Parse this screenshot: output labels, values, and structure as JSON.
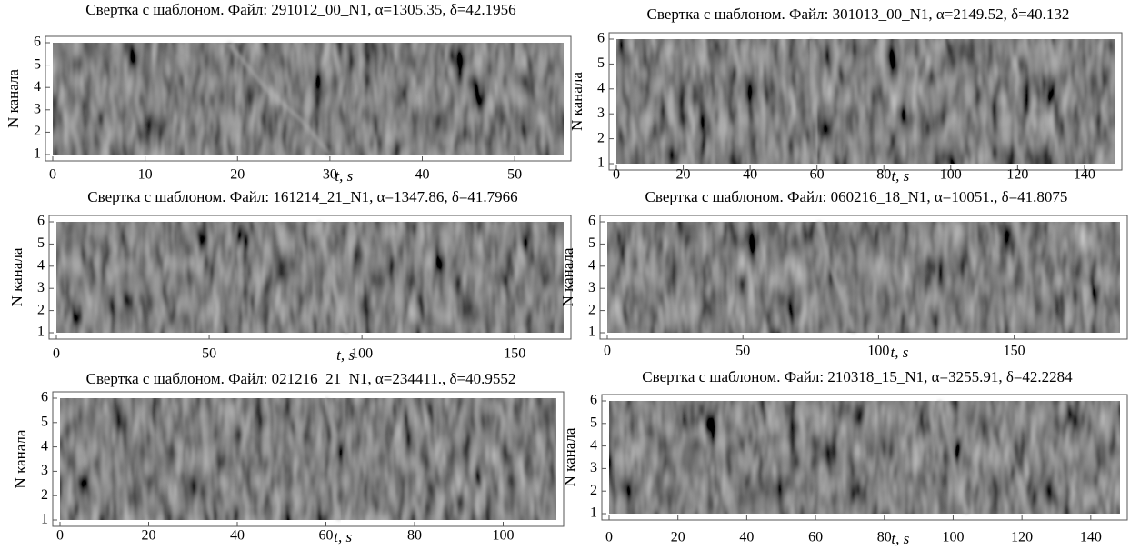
{
  "chart_data": [
    {
      "type": "heatmap",
      "title": "Свертка с шаблоном. Файл: 291012_00_N1, α=1305.35, δ=42.1956",
      "xlabel": "t, s",
      "ylabel": "N канала",
      "xlim": [
        0,
        55.3
      ],
      "xticks": [
        0,
        10,
        20,
        30,
        40,
        50
      ],
      "ylim": [
        1,
        6
      ],
      "yticks": [
        1,
        2,
        3,
        4,
        5,
        6
      ],
      "x": [
        19,
        23,
        27,
        30
      ],
      "values": [
        6,
        4,
        2.5,
        1
      ],
      "color": "#b0b0b0"
    },
    {
      "type": "heatmap",
      "title": "Свертка с шаблоном. Файл: 301013_00_N1, α=2149.52, δ=40.132",
      "xlabel": "t, s",
      "ylabel": "N канала",
      "xlim": [
        0,
        149
      ],
      "xticks": [
        0,
        20,
        40,
        60,
        80,
        100,
        120,
        140
      ],
      "ylim": [
        1,
        6
      ],
      "yticks": [
        1,
        2,
        3,
        4,
        5,
        6
      ],
      "x": [
        58,
        59,
        60,
        60
      ],
      "values": [
        6,
        4,
        2,
        1
      ],
      "color": "#b0b0b0"
    },
    {
      "type": "heatmap",
      "title": "Свертка с шаблоном. Файл: 161214_21_N1, α=1347.86, δ=41.7966",
      "xlabel": "t, s",
      "ylabel": "N канала",
      "xlim": [
        0,
        166
      ],
      "xticks": [
        0,
        50,
        100,
        150
      ],
      "ylim": [
        1,
        6
      ],
      "yticks": [
        1,
        2,
        3,
        4,
        5,
        6
      ],
      "x": [
        86,
        89,
        92,
        95
      ],
      "values": [
        6,
        4,
        2.5,
        1
      ],
      "color": "#b0b0b0"
    },
    {
      "type": "heatmap",
      "title": "Свертка с шаблоном. Файл: 060216_18_N1, α=10051., δ=41.8075",
      "xlabel": "t, s",
      "ylabel": "N канала",
      "xlim": [
        0,
        189
      ],
      "xticks": [
        0,
        50,
        100,
        150
      ],
      "ylim": [
        1,
        6
      ],
      "yticks": [
        1,
        2,
        3,
        4,
        5,
        6
      ],
      "x": [
        78,
        82,
        87,
        91
      ],
      "values": [
        6,
        4,
        2.5,
        1
      ],
      "color": "#b0b0b0"
    },
    {
      "type": "heatmap",
      "title": "Свертка с шаблоном. Файл: 021216_21_N1, α=234411., δ=40.9552",
      "xlabel": "t, s",
      "ylabel": "N канала",
      "xlim": [
        0,
        112
      ],
      "xticks": [
        0,
        20,
        40,
        60,
        80,
        100
      ],
      "ylim": [
        1,
        6
      ],
      "yticks": [
        1,
        2,
        3,
        4,
        5,
        6
      ],
      "x": [
        60,
        62,
        61,
        63
      ],
      "values": [
        6,
        4.5,
        3,
        1
      ],
      "color": "#b0b0b0"
    },
    {
      "type": "heatmap",
      "title": "Свертка с шаблоном. Файл: 210318_15_N1, α=3255.91, δ=42.2284",
      "xlabel": "t, s",
      "ylabel": "N канала",
      "xlim": [
        0,
        148.5
      ],
      "xticks": [
        0,
        20,
        40,
        60,
        80,
        100,
        120,
        140
      ],
      "ylim": [
        1,
        6
      ],
      "yticks": [
        1,
        2,
        3,
        4,
        5,
        6
      ],
      "x": [
        96,
        99,
        102,
        104
      ],
      "values": [
        6,
        4,
        2,
        1
      ],
      "color": "#b0b0b0"
    }
  ]
}
